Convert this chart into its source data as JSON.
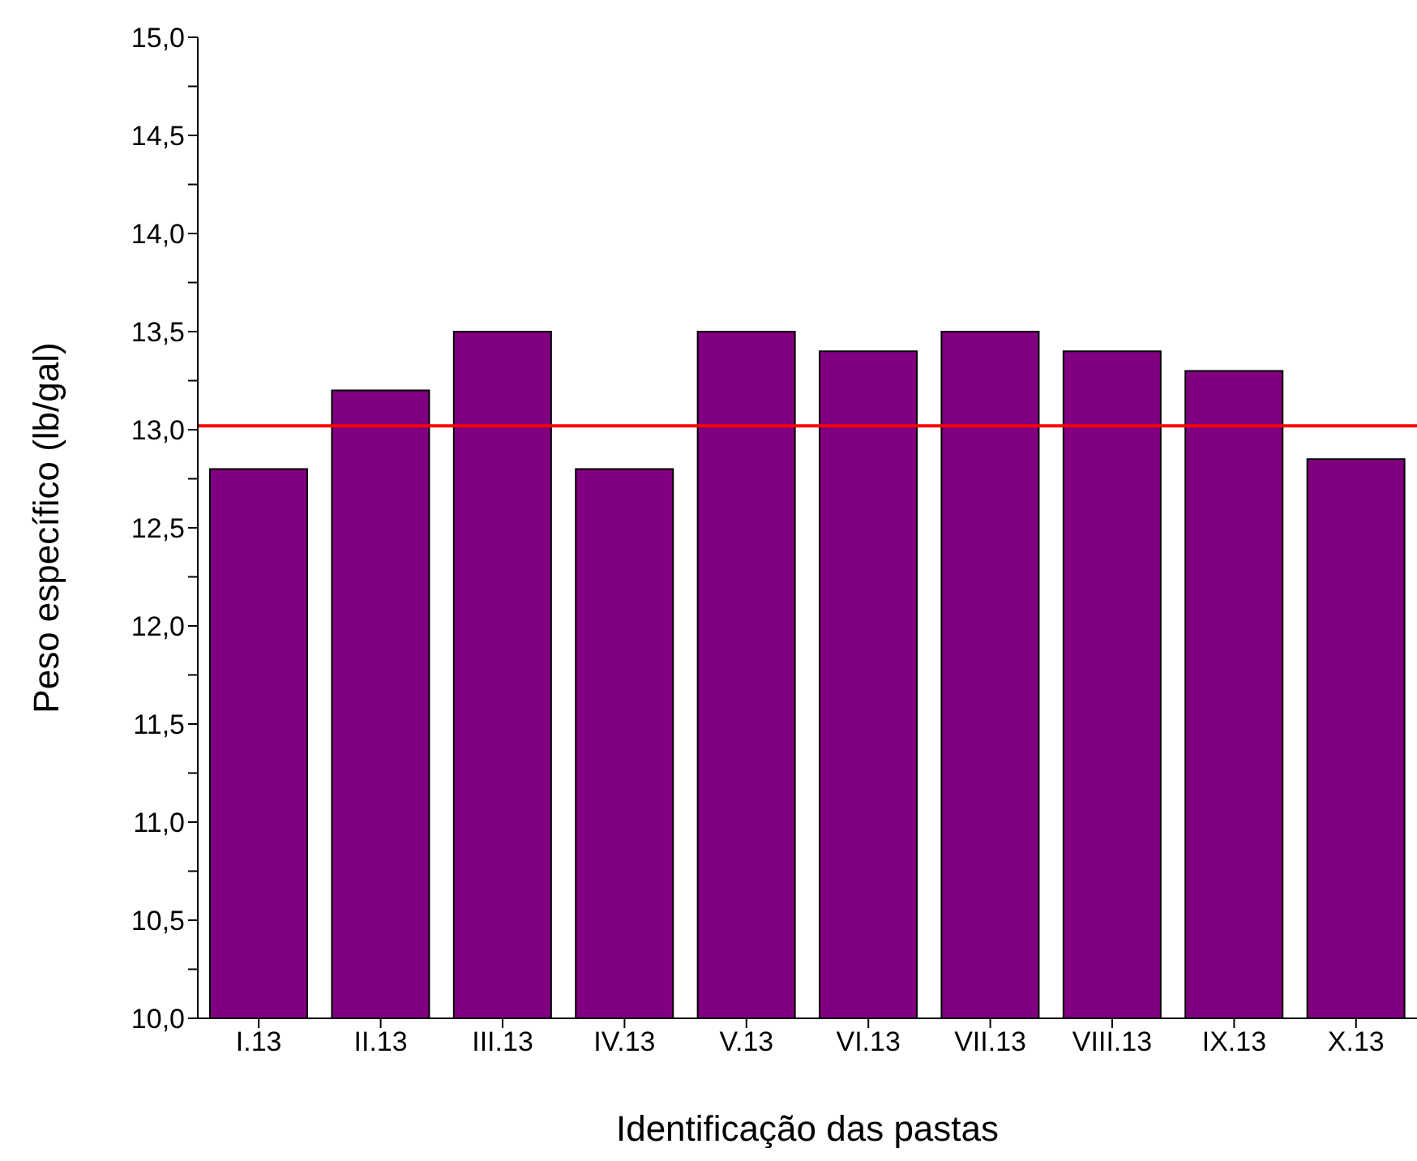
{
  "chart_data": {
    "type": "bar",
    "xlabel": "Identificação das pastas",
    "ylabel": "Peso específico  (lb/gal)",
    "categories": [
      "I.13",
      "II.13",
      "III.13",
      "IV.13",
      "V.13",
      "VI.13",
      "VII.13",
      "VIII.13",
      "IX.13",
      "X.13"
    ],
    "values": [
      12.8,
      13.2,
      13.5,
      12.8,
      13.5,
      13.4,
      13.5,
      13.4,
      13.3,
      12.85
    ],
    "color": "#800080",
    "ylim": [
      10,
      15
    ],
    "yticks": [
      {
        "value": 10,
        "label": "10,0"
      },
      {
        "value": 10.25,
        "label": null
      },
      {
        "value": 10.5,
        "label": "10,5"
      },
      {
        "value": 10.75,
        "label": null
      },
      {
        "value": 11,
        "label": "11,0"
      },
      {
        "value": 11.25,
        "label": null
      },
      {
        "value": 11.5,
        "label": "11,5"
      },
      {
        "value": 11.75,
        "label": null
      },
      {
        "value": 12,
        "label": "12,0"
      },
      {
        "value": 12.25,
        "label": null
      },
      {
        "value": 12.5,
        "label": "12,5"
      },
      {
        "value": 12.75,
        "label": null
      },
      {
        "value": 13,
        "label": "13,0"
      },
      {
        "value": 13.25,
        "label": null
      },
      {
        "value": 13.5,
        "label": "13,5"
      },
      {
        "value": 13.75,
        "label": null
      },
      {
        "value": 14,
        "label": "14,0"
      },
      {
        "value": 14.25,
        "label": null
      },
      {
        "value": 14.5,
        "label": "14,5"
      },
      {
        "value": 14.75,
        "label": null
      },
      {
        "value": 15,
        "label": "15,0"
      }
    ],
    "ref_lines": [
      {
        "axis": "y",
        "value": 13.02,
        "color": "#ff0000"
      }
    ],
    "grid": false,
    "legend": false
  }
}
